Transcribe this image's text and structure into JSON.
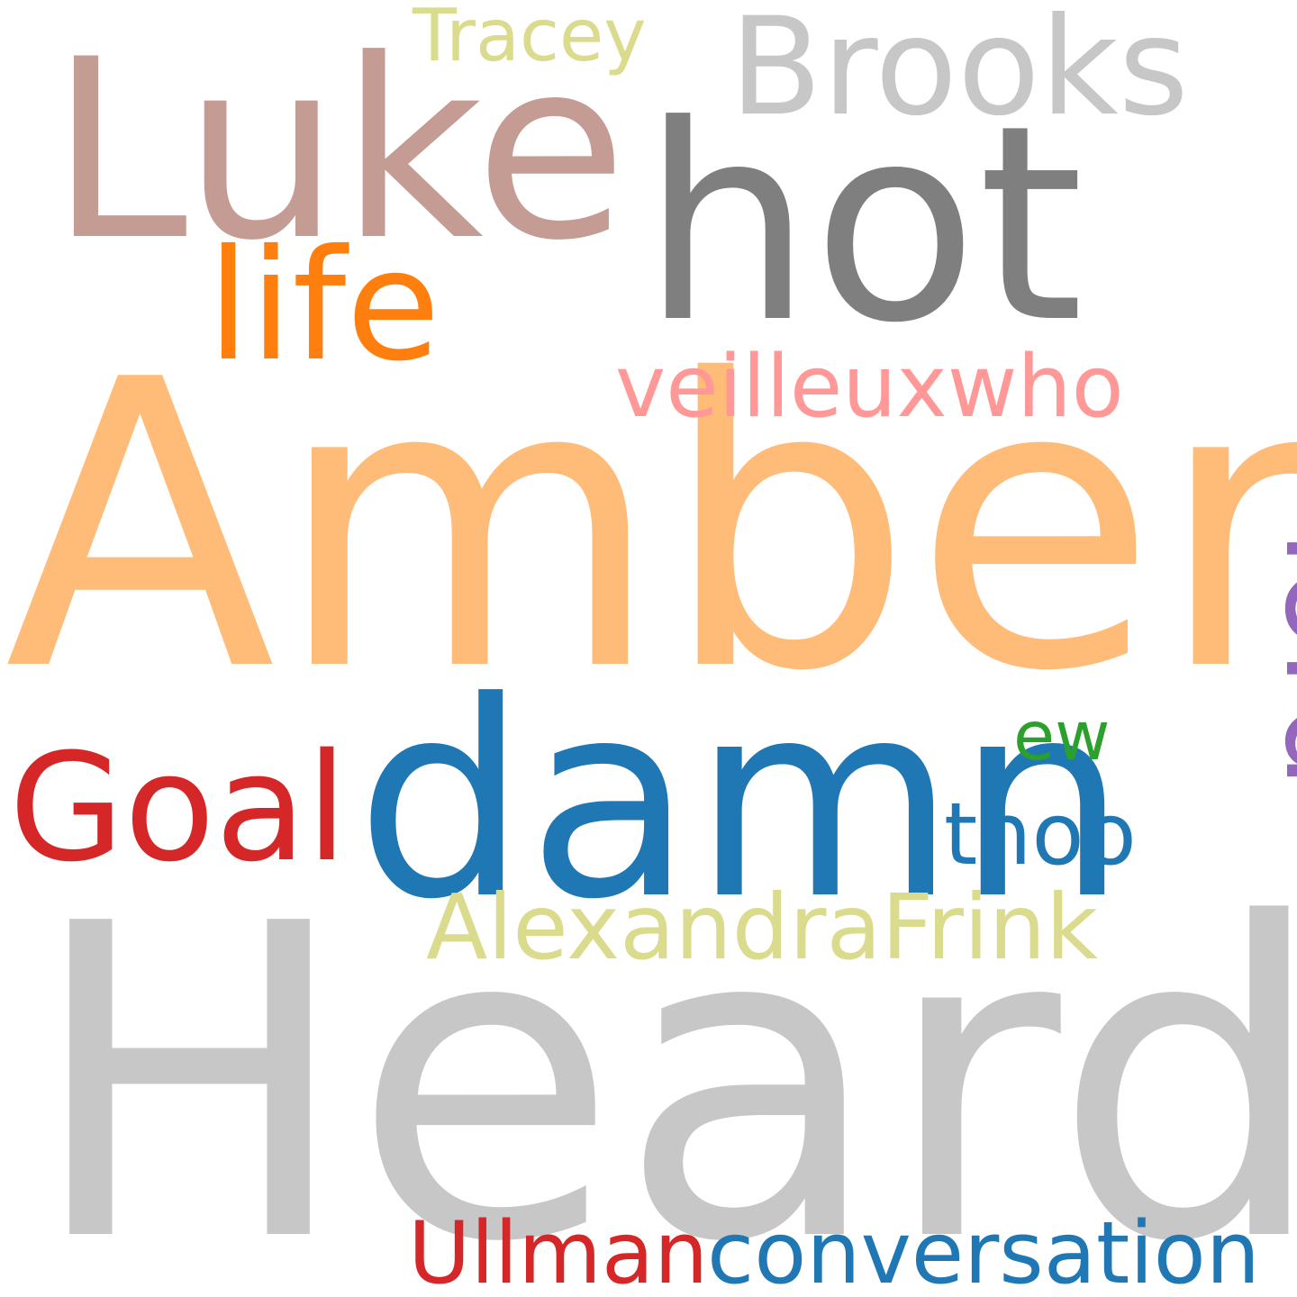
{
  "words": [
    {
      "text": "Heard",
      "color": "#c7c7c7"
    },
    {
      "text": "Amber",
      "color": "#ffbb78"
    },
    {
      "text": "Luke",
      "color": "#c49c94"
    },
    {
      "text": "hot",
      "color": "#7f7f7f"
    },
    {
      "text": "Brooks",
      "color": "#c7c7c7"
    },
    {
      "text": "damn",
      "color": "#1f77b4"
    },
    {
      "text": "life",
      "color": "#ff7f0e"
    },
    {
      "text": "Goal",
      "color": "#d62728"
    },
    {
      "text": "lord",
      "color": "#9467bd"
    },
    {
      "text": "veilleuxwho",
      "color": "#ff9896"
    },
    {
      "text": "AlexandraFrink",
      "color": "#dbdb8d"
    },
    {
      "text": "Ullman",
      "color": "#d62728"
    },
    {
      "text": "conversation",
      "color": "#1f77b4"
    },
    {
      "text": "thoo",
      "color": "#1f77b4"
    },
    {
      "text": "ew",
      "color": "#2ca02c"
    },
    {
      "text": "Tracey",
      "color": "#dbdb8d"
    }
  ]
}
